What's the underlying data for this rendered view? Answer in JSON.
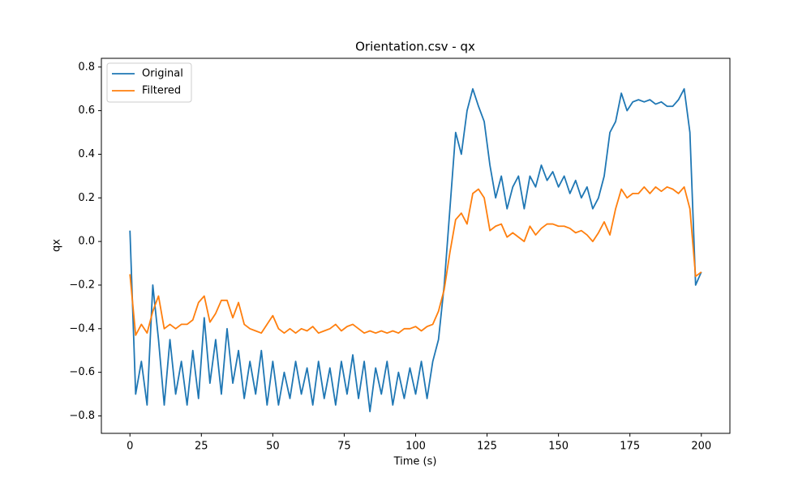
{
  "chart_data": {
    "type": "line",
    "title": "Orientation.csv - qx",
    "xlabel": "Time (s)",
    "ylabel": "qx",
    "x": [
      0,
      2,
      4,
      6,
      8,
      10,
      12,
      14,
      16,
      18,
      20,
      22,
      24,
      26,
      28,
      30,
      32,
      34,
      36,
      38,
      40,
      42,
      44,
      46,
      48,
      50,
      52,
      54,
      56,
      58,
      60,
      62,
      64,
      66,
      68,
      70,
      72,
      74,
      76,
      78,
      80,
      82,
      84,
      86,
      88,
      90,
      92,
      94,
      96,
      98,
      100,
      102,
      104,
      106,
      108,
      110,
      112,
      114,
      116,
      118,
      120,
      122,
      124,
      126,
      128,
      130,
      132,
      134,
      136,
      138,
      140,
      142,
      144,
      146,
      148,
      150,
      152,
      154,
      156,
      158,
      160,
      162,
      164,
      166,
      168,
      170,
      172,
      174,
      176,
      178,
      180,
      182,
      184,
      186,
      188,
      190,
      192,
      194,
      196,
      198,
      200
    ],
    "series": [
      {
        "name": "Original",
        "color": "#1f77b4",
        "values": [
          0.05,
          -0.7,
          -0.55,
          -0.75,
          -0.2,
          -0.45,
          -0.75,
          -0.45,
          -0.7,
          -0.55,
          -0.75,
          -0.5,
          -0.72,
          -0.35,
          -0.65,
          -0.45,
          -0.7,
          -0.4,
          -0.65,
          -0.5,
          -0.72,
          -0.55,
          -0.7,
          -0.5,
          -0.75,
          -0.55,
          -0.75,
          -0.6,
          -0.72,
          -0.55,
          -0.7,
          -0.58,
          -0.75,
          -0.55,
          -0.72,
          -0.58,
          -0.75,
          -0.55,
          -0.7,
          -0.52,
          -0.72,
          -0.55,
          -0.78,
          -0.58,
          -0.7,
          -0.55,
          -0.75,
          -0.6,
          -0.72,
          -0.58,
          -0.7,
          -0.55,
          -0.72,
          -0.55,
          -0.45,
          -0.2,
          0.15,
          0.5,
          0.4,
          0.6,
          0.7,
          0.62,
          0.55,
          0.35,
          0.2,
          0.3,
          0.15,
          0.25,
          0.3,
          0.15,
          0.3,
          0.25,
          0.35,
          0.28,
          0.32,
          0.25,
          0.3,
          0.22,
          0.28,
          0.2,
          0.25,
          0.15,
          0.2,
          0.3,
          0.5,
          0.55,
          0.68,
          0.6,
          0.64,
          0.65,
          0.64,
          0.65,
          0.63,
          0.64,
          0.62,
          0.62,
          0.65,
          0.7,
          0.5,
          -0.2,
          -0.14
        ]
      },
      {
        "name": "Filtered",
        "color": "#ff7f0e",
        "values": [
          -0.15,
          -0.43,
          -0.38,
          -0.42,
          -0.32,
          -0.25,
          -0.4,
          -0.38,
          -0.4,
          -0.38,
          -0.38,
          -0.36,
          -0.28,
          -0.25,
          -0.37,
          -0.33,
          -0.27,
          -0.27,
          -0.35,
          -0.28,
          -0.38,
          -0.4,
          -0.41,
          -0.42,
          -0.38,
          -0.34,
          -0.4,
          -0.42,
          -0.4,
          -0.42,
          -0.4,
          -0.41,
          -0.39,
          -0.42,
          -0.41,
          -0.4,
          -0.38,
          -0.41,
          -0.39,
          -0.38,
          -0.4,
          -0.42,
          -0.41,
          -0.42,
          -0.41,
          -0.42,
          -0.41,
          -0.42,
          -0.4,
          -0.4,
          -0.39,
          -0.41,
          -0.39,
          -0.38,
          -0.32,
          -0.22,
          -0.05,
          0.1,
          0.13,
          0.08,
          0.22,
          0.24,
          0.2,
          0.05,
          0.07,
          0.08,
          0.02,
          0.04,
          0.02,
          0.0,
          0.07,
          0.03,
          0.06,
          0.08,
          0.08,
          0.07,
          0.07,
          0.06,
          0.04,
          0.05,
          0.03,
          0.0,
          0.04,
          0.09,
          0.03,
          0.15,
          0.24,
          0.2,
          0.22,
          0.22,
          0.25,
          0.22,
          0.25,
          0.23,
          0.25,
          0.24,
          0.22,
          0.25,
          0.15,
          -0.16,
          -0.14
        ]
      }
    ],
    "xlim": [
      -10,
      210
    ],
    "xticks": [
      0,
      25,
      50,
      75,
      100,
      125,
      150,
      175,
      200
    ],
    "ylim": [
      -0.88,
      0.84
    ],
    "yticks": [
      {
        "value": -0.8,
        "label": "−0.8"
      },
      {
        "value": -0.6,
        "label": "−0.6"
      },
      {
        "value": -0.4,
        "label": "−0.4"
      },
      {
        "value": -0.2,
        "label": "−0.2"
      },
      {
        "value": 0,
        "label": "0.0"
      },
      {
        "value": 0.2,
        "label": "0.2"
      },
      {
        "value": 0.4,
        "label": "0.4"
      },
      {
        "value": 0.6,
        "label": "0.6"
      },
      {
        "value": 0.8,
        "label": "0.8"
      }
    ],
    "grid": false,
    "legend": "upper left"
  }
}
